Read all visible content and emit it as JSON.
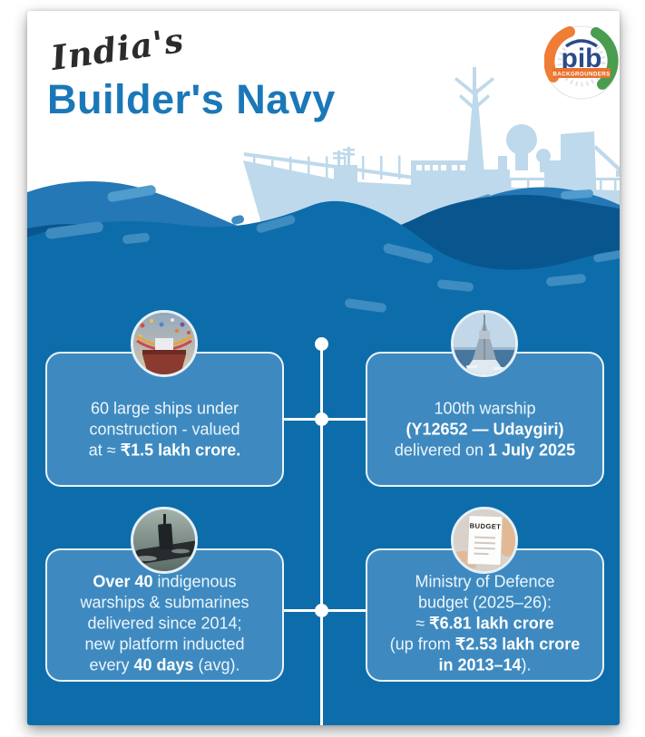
{
  "colors": {
    "ocean": "#0d6dab",
    "back_wave": "#2478b6",
    "wave_shadow": "#09568f",
    "wave_highlight": "#3f8cc1",
    "ship_silhouette": "#bed9eb",
    "card_blue": "#3e8ac0",
    "title_blue": "#1b78b8",
    "script_dark": "#2b2b2b",
    "logo_orange": "#ef7d35",
    "logo_green": "#4a9d4f"
  },
  "header": {
    "title_script": "India's",
    "title_main": "Builder's Navy"
  },
  "logo": {
    "name": "pib",
    "banner": "BACKGROUNDERS"
  },
  "budget_icon_label": "BUDGET",
  "cards": [
    {
      "id": "ships-under-construction",
      "icon": "ship-launch-icon",
      "lines": [
        [
          {
            "t": "60 large ships under"
          }
        ],
        [
          {
            "t": "construction - valued"
          }
        ],
        [
          {
            "t": "at ≈ "
          },
          {
            "t": "₹1.5 lakh crore.",
            "b": true
          }
        ]
      ]
    },
    {
      "id": "100th-warship-delivery",
      "icon": "warship-icon",
      "lines": [
        [
          {
            "t": "100th warship"
          }
        ],
        [
          {
            "t": "(Y12652 — Udaygiri)",
            "b": true
          }
        ],
        [
          {
            "t": "delivered on "
          },
          {
            "t": "1 July 2025",
            "b": true
          }
        ]
      ]
    },
    {
      "id": "indigenous-deliveries",
      "icon": "submarine-icon",
      "lines": [
        [
          {
            "t": "Over 40",
            "b": true
          },
          {
            "t": " indigenous"
          }
        ],
        [
          {
            "t": "warships & submarines"
          }
        ],
        [
          {
            "t": "delivered since 2014;"
          }
        ],
        [
          {
            "t": "new platform inducted"
          }
        ],
        [
          {
            "t": "every "
          },
          {
            "t": "40 days",
            "b": true
          },
          {
            "t": " (avg)."
          }
        ]
      ]
    },
    {
      "id": "defence-budget",
      "icon": "budget-icon",
      "lines": [
        [
          {
            "t": "Ministry of Defence"
          }
        ],
        [
          {
            "t": "budget (2025–26):"
          }
        ],
        [
          {
            "t": "≈ "
          },
          {
            "t": "₹6.81 lakh crore",
            "b": true
          }
        ],
        [
          {
            "t": "(up from "
          },
          {
            "t": "₹2.53 lakh crore",
            "b": true
          }
        ],
        [
          {
            "t": "in 2013–14",
            "b": true
          },
          {
            "t": ")."
          }
        ]
      ]
    }
  ]
}
